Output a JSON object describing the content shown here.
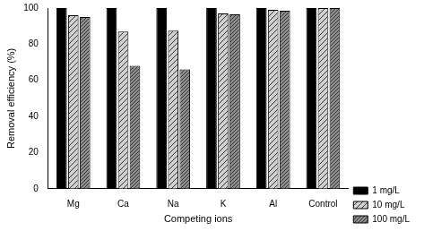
{
  "chart_data": {
    "type": "bar",
    "x_label": "Competing ions",
    "y_label": "Removal efficiency (%)",
    "categories": [
      "Mg",
      "Ca",
      "Na",
      "K",
      "Al",
      "Control"
    ],
    "series": [
      {
        "name": "1 mg/L",
        "color": "#000000",
        "values": [
          100,
          100,
          100,
          100,
          100,
          100
        ]
      },
      {
        "name": "10 mg/L",
        "color": "#d0d0d0",
        "values": [
          96,
          87,
          87.5,
          97,
          99,
          100
        ]
      },
      {
        "name": "100 mg/L",
        "color": "#8c8c8c",
        "values": [
          95,
          68,
          66,
          96.5,
          98.5,
          100
        ]
      }
    ],
    "ylim": [
      0,
      100
    ],
    "yticks": [
      0,
      20,
      40,
      60,
      80,
      100
    ],
    "grid": false,
    "legend": "lower right"
  }
}
